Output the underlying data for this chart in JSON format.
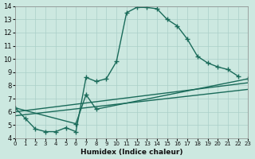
{
  "xlabel": "Humidex (Indice chaleur)",
  "xlim": [
    0,
    23
  ],
  "ylim": [
    4,
    14
  ],
  "xticks": [
    0,
    1,
    2,
    3,
    4,
    5,
    6,
    7,
    8,
    9,
    10,
    11,
    12,
    13,
    14,
    15,
    16,
    17,
    18,
    19,
    20,
    21,
    22,
    23
  ],
  "yticks": [
    4,
    5,
    6,
    7,
    8,
    9,
    10,
    11,
    12,
    13,
    14
  ],
  "bg_color": "#cce8e0",
  "line_color": "#1a6b5a",
  "grid_color": "#aacfc8",
  "line1_x": [
    0,
    1,
    2,
    3,
    4,
    5,
    6,
    7,
    8,
    9,
    10,
    11,
    12,
    13,
    14,
    15,
    16,
    17,
    18,
    19,
    20,
    21,
    22
  ],
  "line1_y": [
    6.3,
    5.5,
    4.7,
    4.5,
    4.5,
    4.8,
    4.5,
    8.6,
    8.3,
    8.5,
    9.8,
    13.5,
    13.9,
    13.9,
    13.8,
    13.0,
    12.5,
    11.5,
    10.2,
    9.7,
    9.4,
    9.2,
    8.7
  ],
  "line2_x": [
    0,
    6,
    7,
    8,
    23
  ],
  "line2_y": [
    6.3,
    5.1,
    7.3,
    6.2,
    8.5
  ],
  "line3_x": [
    0,
    23
  ],
  "line3_y": [
    6.0,
    8.2
  ],
  "line4_x": [
    0,
    23
  ],
  "line4_y": [
    5.7,
    7.7
  ]
}
